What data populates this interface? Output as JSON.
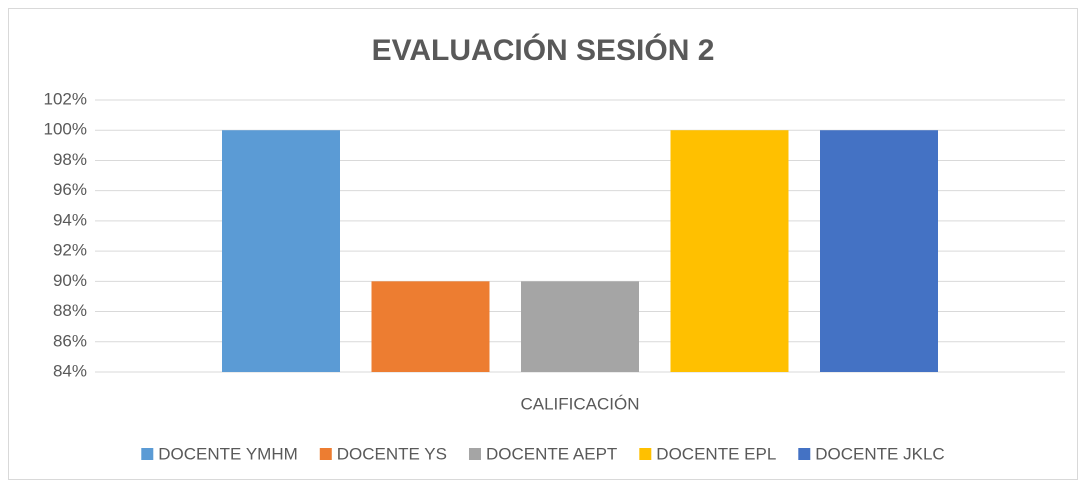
{
  "chart_data": {
    "type": "bar",
    "title": "EVALUACIÓN SESIÓN 2",
    "categories": [
      "CALIFICACIÓN"
    ],
    "series": [
      {
        "name": "DOCENTE YMHM",
        "color": "#5b9bd5",
        "values": [
          100
        ]
      },
      {
        "name": "DOCENTE YS",
        "color": "#ed7d31",
        "values": [
          90
        ]
      },
      {
        "name": "DOCENTE AEPT",
        "color": "#a5a5a5",
        "values": [
          90
        ]
      },
      {
        "name": "DOCENTE EPL",
        "color": "#ffc000",
        "values": [
          100
        ]
      },
      {
        "name": "DOCENTE JKLC",
        "color": "#4472c4",
        "values": [
          100
        ]
      }
    ],
    "ylim": [
      84,
      102
    ],
    "yticks": [
      {
        "value": 84,
        "label": "84%"
      },
      {
        "value": 86,
        "label": "86%"
      },
      {
        "value": 88,
        "label": "88%"
      },
      {
        "value": 90,
        "label": "90%"
      },
      {
        "value": 92,
        "label": "92%"
      },
      {
        "value": 94,
        "label": "94%"
      },
      {
        "value": 96,
        "label": "96%"
      },
      {
        "value": 98,
        "label": "98%"
      },
      {
        "value": 100,
        "label": "100%"
      },
      {
        "value": 102,
        "label": "102%"
      }
    ],
    "grid": true,
    "legend": "bottom"
  }
}
